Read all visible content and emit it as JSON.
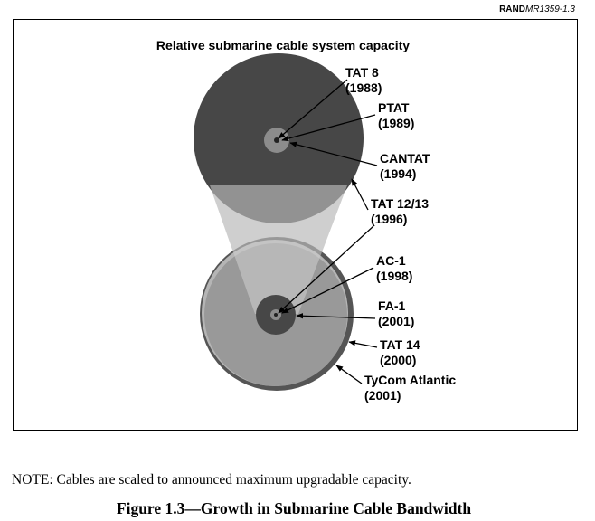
{
  "header": {
    "rand": "RAND",
    "id": "MR1359-1.3"
  },
  "figure": {
    "title": "Relative submarine cable system capacity",
    "labels": [
      {
        "name": "TAT 8",
        "year": "(1988)"
      },
      {
        "name": "PTAT",
        "year": "(1989)"
      },
      {
        "name": "CANTAT",
        "year": "(1994)"
      },
      {
        "name": "TAT 12/13",
        "year": "(1996)"
      },
      {
        "name": "AC-1",
        "year": "(1998)"
      },
      {
        "name": "FA-1",
        "year": "(2001)"
      },
      {
        "name": "TAT 14",
        "year": "(2000)"
      },
      {
        "name": "TyCom Atlantic",
        "year": "(2001)"
      }
    ]
  },
  "note": "NOTE:  Cables are scaled to announced maximum upgradable capacity.",
  "caption": "Figure 1.3—Growth in Submarine Cable Bandwidth"
}
